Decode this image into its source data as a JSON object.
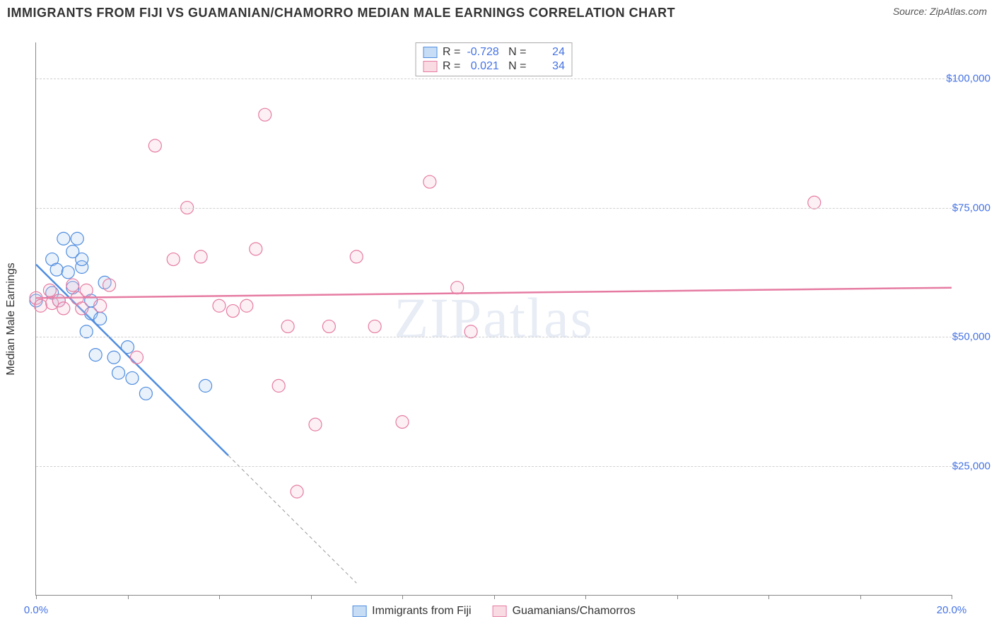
{
  "title": "IMMIGRANTS FROM FIJI VS GUAMANIAN/CHAMORRO MEDIAN MALE EARNINGS CORRELATION CHART",
  "source_label": "Source: ZipAtlas.com",
  "y_axis_label": "Median Male Earnings",
  "watermark": "ZIPatlas",
  "chart": {
    "type": "scatter",
    "background_color": "#ffffff",
    "grid_color": "#d0d0d0",
    "axis_color": "#888888",
    "xlim": [
      0,
      20
    ],
    "ylim": [
      0,
      107000
    ],
    "ytick_values": [
      25000,
      50000,
      75000,
      100000
    ],
    "ytick_labels": [
      "$25,000",
      "$50,000",
      "$75,000",
      "$100,000"
    ],
    "xtick_values": [
      0,
      2,
      4,
      6,
      8,
      10,
      12,
      14,
      16,
      18,
      20
    ],
    "xtick_start_label": "0.0%",
    "xtick_end_label": "20.0%",
    "marker_radius": 9,
    "marker_stroke_width": 1.2,
    "marker_fill_opacity": 0.25,
    "trend_line_width": 2.5,
    "trend_dash_pattern": "5,4"
  },
  "series": [
    {
      "name": "Immigrants from Fiji",
      "color_stroke": "#4f8ddf",
      "color_fill": "#a8c9ef",
      "legend_swatch_border": "#4f8ddf",
      "legend_swatch_fill": "#c6ddf5",
      "r_value": "-0.728",
      "n_value": "24",
      "trend": {
        "x1": 0.0,
        "y1": 64000,
        "x2": 4.2,
        "y2": 27000,
        "extend_dashed": true,
        "x3": 7.0,
        "y3": 2300
      },
      "points": [
        [
          0.0,
          57000
        ],
        [
          0.35,
          65000
        ],
        [
          0.35,
          58500
        ],
        [
          0.45,
          63000
        ],
        [
          0.5,
          57000
        ],
        [
          0.6,
          69000
        ],
        [
          0.7,
          62500
        ],
        [
          0.8,
          66500
        ],
        [
          0.8,
          59500
        ],
        [
          0.9,
          69000
        ],
        [
          1.0,
          63500
        ],
        [
          1.0,
          65000
        ],
        [
          1.1,
          51000
        ],
        [
          1.2,
          54500
        ],
        [
          1.2,
          57000
        ],
        [
          1.3,
          46500
        ],
        [
          1.4,
          53500
        ],
        [
          1.5,
          60500
        ],
        [
          1.7,
          46000
        ],
        [
          1.8,
          43000
        ],
        [
          2.0,
          48000
        ],
        [
          2.1,
          42000
        ],
        [
          2.4,
          39000
        ],
        [
          3.7,
          40500
        ]
      ]
    },
    {
      "name": "Guamanians/Chamorros",
      "color_stroke": "#e67ba2",
      "color_fill": "#f5c3d4",
      "legend_swatch_border": "#e67ba2",
      "legend_swatch_fill": "#f9dbe4",
      "r_value": "0.021",
      "n_value": "34",
      "trend": {
        "x1": 0.0,
        "y1": 57500,
        "x2": 20.0,
        "y2": 59500,
        "extend_dashed": false
      },
      "points": [
        [
          0.0,
          57500
        ],
        [
          0.1,
          56000
        ],
        [
          0.3,
          59000
        ],
        [
          0.35,
          56500
        ],
        [
          0.5,
          57000
        ],
        [
          0.6,
          55500
        ],
        [
          0.8,
          60000
        ],
        [
          0.9,
          57500
        ],
        [
          1.0,
          55500
        ],
        [
          1.1,
          59000
        ],
        [
          1.4,
          56000
        ],
        [
          1.6,
          60000
        ],
        [
          2.2,
          46000
        ],
        [
          2.6,
          87000
        ],
        [
          3.0,
          65000
        ],
        [
          3.3,
          75000
        ],
        [
          3.6,
          65500
        ],
        [
          4.0,
          56000
        ],
        [
          4.3,
          55000
        ],
        [
          4.6,
          56000
        ],
        [
          4.8,
          67000
        ],
        [
          5.0,
          93000
        ],
        [
          5.3,
          40500
        ],
        [
          5.5,
          52000
        ],
        [
          5.7,
          20000
        ],
        [
          6.1,
          33000
        ],
        [
          6.4,
          52000
        ],
        [
          7.0,
          65500
        ],
        [
          7.4,
          52000
        ],
        [
          8.0,
          33500
        ],
        [
          8.6,
          80000
        ],
        [
          9.2,
          59500
        ],
        [
          9.5,
          51000
        ],
        [
          17.0,
          76000
        ]
      ]
    }
  ],
  "legend_bottom": {
    "items": [
      "Immigrants from Fiji",
      "Guamanians/Chamorros"
    ]
  }
}
